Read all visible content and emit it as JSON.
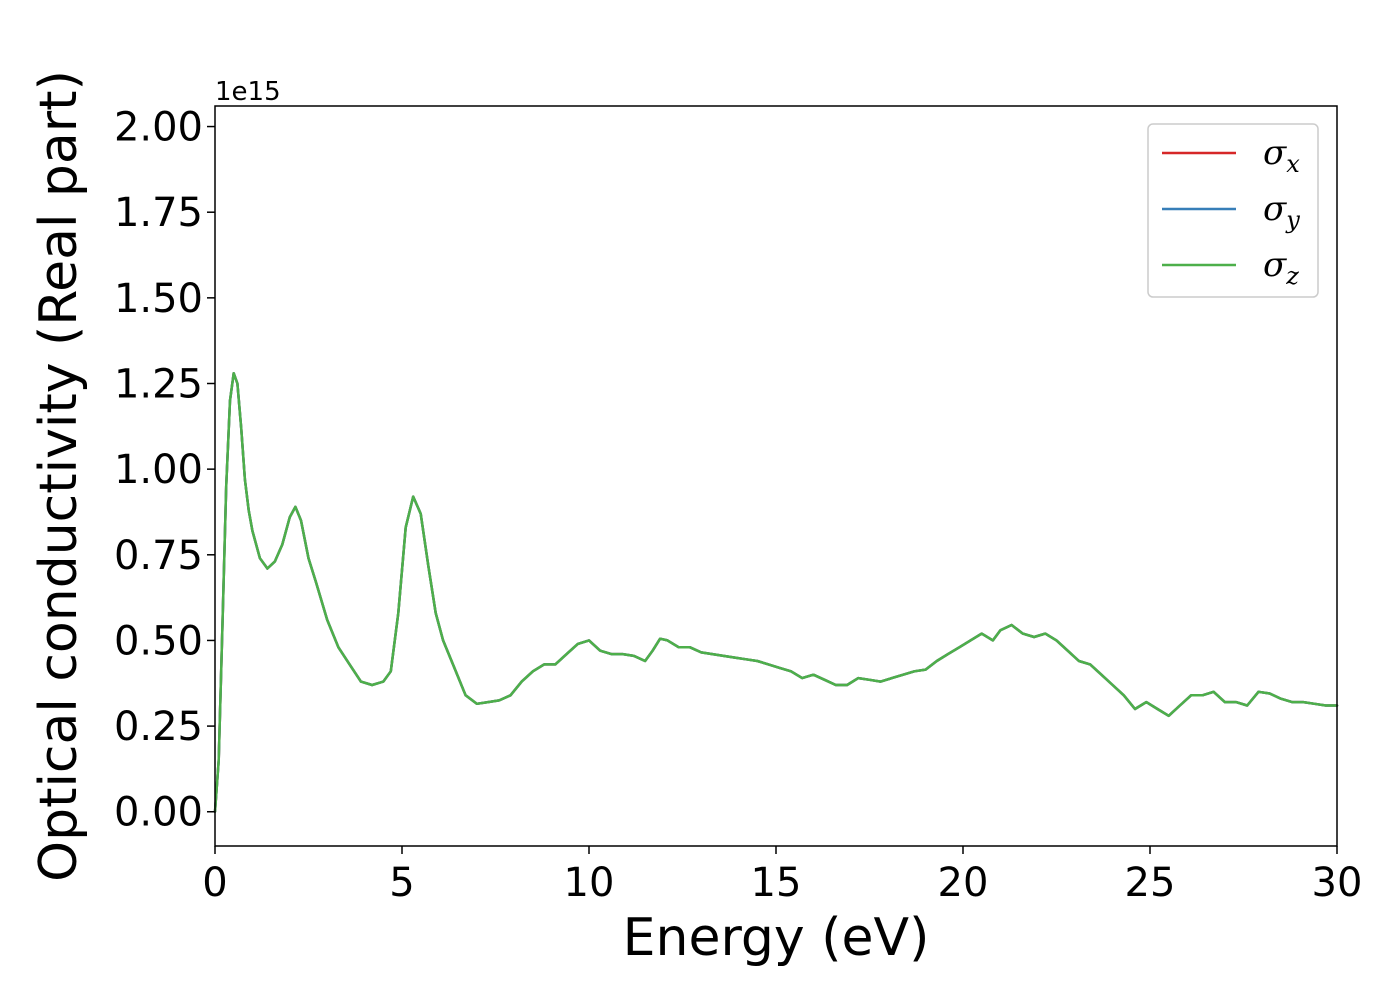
{
  "chart_data": {
    "type": "line",
    "xlabel": "Energy (eV)",
    "ylabel": "Optical conductivity (Real part)",
    "y_offset_label": "1e15",
    "xlim": [
      0,
      30
    ],
    "ylim": [
      -0.1,
      2.06
    ],
    "x_ticks": [
      0,
      5,
      10,
      15,
      20,
      25,
      30
    ],
    "x_tick_labels": [
      "0",
      "5",
      "10",
      "15",
      "20",
      "25",
      "30"
    ],
    "y_ticks": [
      0.0,
      0.25,
      0.5,
      0.75,
      1.0,
      1.25,
      1.5,
      1.75,
      2.0
    ],
    "y_tick_labels": [
      "0.00",
      "0.25",
      "0.50",
      "0.75",
      "1.00",
      "1.25",
      "1.50",
      "1.75",
      "2.00"
    ],
    "grid": false,
    "legend_position": "top-right",
    "series": [
      {
        "name": "σ",
        "subscript": "x",
        "color": "#d62728",
        "x": [
          0,
          0.1,
          0.2,
          0.3,
          0.4,
          0.5,
          0.6,
          0.7,
          0.8,
          0.9,
          1.0,
          1.2,
          1.4,
          1.6,
          1.8,
          2.0,
          2.15,
          2.3,
          2.5,
          2.7,
          3.0,
          3.3,
          3.6,
          3.9,
          4.2,
          4.5,
          4.7,
          4.9,
          5.1,
          5.3,
          5.5,
          5.7,
          5.9,
          6.1,
          6.4,
          6.7,
          7.0,
          7.3,
          7.6,
          7.9,
          8.2,
          8.5,
          8.8,
          9.1,
          9.4,
          9.7,
          10.0,
          10.3,
          10.6,
          10.9,
          11.2,
          11.5,
          11.7,
          11.9,
          12.1,
          12.4,
          12.7,
          13.0,
          13.3,
          13.6,
          13.9,
          14.2,
          14.5,
          14.8,
          15.1,
          15.4,
          15.7,
          16.0,
          16.3,
          16.6,
          16.9,
          17.2,
          17.5,
          17.8,
          18.1,
          18.4,
          18.7,
          19.0,
          19.3,
          19.6,
          19.9,
          20.2,
          20.5,
          20.8,
          21.0,
          21.3,
          21.6,
          21.9,
          22.2,
          22.5,
          22.8,
          23.1,
          23.4,
          23.7,
          24.0,
          24.3,
          24.6,
          24.9,
          25.2,
          25.5,
          25.8,
          26.1,
          26.4,
          26.7,
          27.0,
          27.3,
          27.6,
          27.9,
          28.2,
          28.5,
          28.8,
          29.1,
          29.4,
          29.7,
          30.0
        ],
        "values": [
          0.0,
          0.15,
          0.55,
          0.95,
          1.2,
          1.28,
          1.25,
          1.12,
          0.97,
          0.88,
          0.82,
          0.74,
          0.71,
          0.73,
          0.78,
          0.86,
          0.89,
          0.85,
          0.74,
          0.67,
          0.56,
          0.48,
          0.43,
          0.38,
          0.37,
          0.38,
          0.41,
          0.58,
          0.83,
          0.92,
          0.87,
          0.72,
          0.58,
          0.5,
          0.42,
          0.34,
          0.315,
          0.32,
          0.325,
          0.34,
          0.38,
          0.41,
          0.43,
          0.43,
          0.46,
          0.49,
          0.5,
          0.47,
          0.46,
          0.46,
          0.455,
          0.44,
          0.47,
          0.505,
          0.5,
          0.48,
          0.48,
          0.465,
          0.46,
          0.455,
          0.45,
          0.445,
          0.44,
          0.43,
          0.42,
          0.41,
          0.39,
          0.4,
          0.385,
          0.37,
          0.37,
          0.39,
          0.385,
          0.38,
          0.39,
          0.4,
          0.41,
          0.415,
          0.44,
          0.46,
          0.48,
          0.5,
          0.52,
          0.5,
          0.53,
          0.545,
          0.52,
          0.51,
          0.52,
          0.5,
          0.47,
          0.44,
          0.43,
          0.4,
          0.37,
          0.34,
          0.3,
          0.32,
          0.3,
          0.28,
          0.31,
          0.34,
          0.34,
          0.35,
          0.32,
          0.32,
          0.31,
          0.35,
          0.345,
          0.33,
          0.32,
          0.32,
          0.315,
          0.31,
          0.31
        ]
      },
      {
        "name": "σ",
        "subscript": "y",
        "color": "#377eb8",
        "x": [
          0,
          0.1,
          0.2,
          0.3,
          0.4,
          0.5,
          0.6,
          0.7,
          0.8,
          0.9,
          1.0,
          1.2,
          1.4,
          1.6,
          1.8,
          2.0,
          2.15,
          2.3,
          2.5,
          2.7,
          3.0,
          3.3,
          3.6,
          3.9,
          4.2,
          4.5,
          4.7,
          4.9,
          5.1,
          5.3,
          5.5,
          5.7,
          5.9,
          6.1,
          6.4,
          6.7,
          7.0,
          7.3,
          7.6,
          7.9,
          8.2,
          8.5,
          8.8,
          9.1,
          9.4,
          9.7,
          10.0,
          10.3,
          10.6,
          10.9,
          11.2,
          11.5,
          11.7,
          11.9,
          12.1,
          12.4,
          12.7,
          13.0,
          13.3,
          13.6,
          13.9,
          14.2,
          14.5,
          14.8,
          15.1,
          15.4,
          15.7,
          16.0,
          16.3,
          16.6,
          16.9,
          17.2,
          17.5,
          17.8,
          18.1,
          18.4,
          18.7,
          19.0,
          19.3,
          19.6,
          19.9,
          20.2,
          20.5,
          20.8,
          21.0,
          21.3,
          21.6,
          21.9,
          22.2,
          22.5,
          22.8,
          23.1,
          23.4,
          23.7,
          24.0,
          24.3,
          24.6,
          24.9,
          25.2,
          25.5,
          25.8,
          26.1,
          26.4,
          26.7,
          27.0,
          27.3,
          27.6,
          27.9,
          28.2,
          28.5,
          28.8,
          29.1,
          29.4,
          29.7,
          30.0
        ],
        "values": [
          0.0,
          0.15,
          0.55,
          0.95,
          1.2,
          1.28,
          1.25,
          1.12,
          0.97,
          0.88,
          0.82,
          0.74,
          0.71,
          0.73,
          0.78,
          0.86,
          0.89,
          0.85,
          0.74,
          0.67,
          0.56,
          0.48,
          0.43,
          0.38,
          0.37,
          0.38,
          0.41,
          0.58,
          0.83,
          0.92,
          0.87,
          0.72,
          0.58,
          0.5,
          0.42,
          0.34,
          0.315,
          0.32,
          0.325,
          0.34,
          0.38,
          0.41,
          0.43,
          0.43,
          0.46,
          0.49,
          0.5,
          0.47,
          0.46,
          0.46,
          0.455,
          0.44,
          0.47,
          0.505,
          0.5,
          0.48,
          0.48,
          0.465,
          0.46,
          0.455,
          0.45,
          0.445,
          0.44,
          0.43,
          0.42,
          0.41,
          0.39,
          0.4,
          0.385,
          0.37,
          0.37,
          0.39,
          0.385,
          0.38,
          0.39,
          0.4,
          0.41,
          0.415,
          0.44,
          0.46,
          0.48,
          0.5,
          0.52,
          0.5,
          0.53,
          0.545,
          0.52,
          0.51,
          0.52,
          0.5,
          0.47,
          0.44,
          0.43,
          0.4,
          0.37,
          0.34,
          0.3,
          0.32,
          0.3,
          0.28,
          0.31,
          0.34,
          0.34,
          0.35,
          0.32,
          0.32,
          0.31,
          0.35,
          0.345,
          0.33,
          0.32,
          0.32,
          0.315,
          0.31,
          0.31
        ]
      },
      {
        "name": "σ",
        "subscript": "z",
        "color": "#4daf4a",
        "x": [
          0,
          0.1,
          0.2,
          0.3,
          0.4,
          0.5,
          0.6,
          0.7,
          0.8,
          0.9,
          1.0,
          1.2,
          1.4,
          1.6,
          1.8,
          2.0,
          2.15,
          2.3,
          2.5,
          2.7,
          3.0,
          3.3,
          3.6,
          3.9,
          4.2,
          4.5,
          4.7,
          4.9,
          5.1,
          5.3,
          5.5,
          5.7,
          5.9,
          6.1,
          6.4,
          6.7,
          7.0,
          7.3,
          7.6,
          7.9,
          8.2,
          8.5,
          8.8,
          9.1,
          9.4,
          9.7,
          10.0,
          10.3,
          10.6,
          10.9,
          11.2,
          11.5,
          11.7,
          11.9,
          12.1,
          12.4,
          12.7,
          13.0,
          13.3,
          13.6,
          13.9,
          14.2,
          14.5,
          14.8,
          15.1,
          15.4,
          15.7,
          16.0,
          16.3,
          16.6,
          16.9,
          17.2,
          17.5,
          17.8,
          18.1,
          18.4,
          18.7,
          19.0,
          19.3,
          19.6,
          19.9,
          20.2,
          20.5,
          20.8,
          21.0,
          21.3,
          21.6,
          21.9,
          22.2,
          22.5,
          22.8,
          23.1,
          23.4,
          23.7,
          24.0,
          24.3,
          24.6,
          24.9,
          25.2,
          25.5,
          25.8,
          26.1,
          26.4,
          26.7,
          27.0,
          27.3,
          27.6,
          27.9,
          28.2,
          28.5,
          28.8,
          29.1,
          29.4,
          29.7,
          30.0
        ],
        "values": [
          0.0,
          0.15,
          0.55,
          0.95,
          1.2,
          1.28,
          1.25,
          1.12,
          0.97,
          0.88,
          0.82,
          0.74,
          0.71,
          0.73,
          0.78,
          0.86,
          0.89,
          0.85,
          0.74,
          0.67,
          0.56,
          0.48,
          0.43,
          0.38,
          0.37,
          0.38,
          0.41,
          0.58,
          0.83,
          0.92,
          0.87,
          0.72,
          0.58,
          0.5,
          0.42,
          0.34,
          0.315,
          0.32,
          0.325,
          0.34,
          0.38,
          0.41,
          0.43,
          0.43,
          0.46,
          0.49,
          0.5,
          0.47,
          0.46,
          0.46,
          0.455,
          0.44,
          0.47,
          0.505,
          0.5,
          0.48,
          0.48,
          0.465,
          0.46,
          0.455,
          0.45,
          0.445,
          0.44,
          0.43,
          0.42,
          0.41,
          0.39,
          0.4,
          0.385,
          0.37,
          0.37,
          0.39,
          0.385,
          0.38,
          0.39,
          0.4,
          0.41,
          0.415,
          0.44,
          0.46,
          0.48,
          0.5,
          0.52,
          0.5,
          0.53,
          0.545,
          0.52,
          0.51,
          0.52,
          0.5,
          0.47,
          0.44,
          0.43,
          0.4,
          0.37,
          0.34,
          0.3,
          0.32,
          0.3,
          0.28,
          0.31,
          0.34,
          0.34,
          0.35,
          0.32,
          0.32,
          0.31,
          0.35,
          0.345,
          0.33,
          0.32,
          0.32,
          0.315,
          0.31,
          0.31
        ]
      }
    ]
  }
}
